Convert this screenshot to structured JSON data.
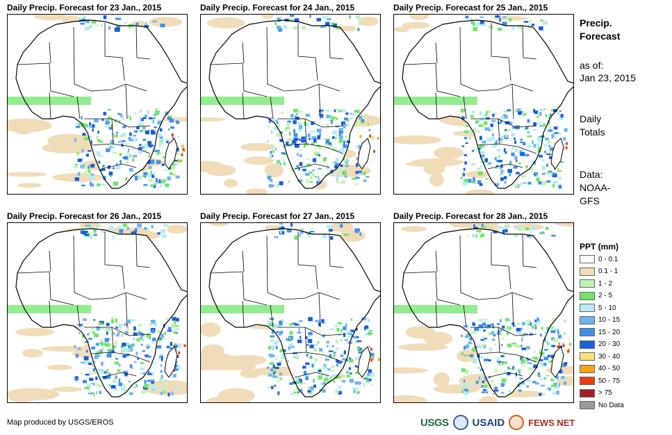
{
  "panels": [
    {
      "title": "Daily Precip. Forecast for 23 Jan., 2015"
    },
    {
      "title": "Daily Precip. Forecast for 24 Jan., 2015"
    },
    {
      "title": "Daily Precip. Forecast for 25 Jan., 2015"
    },
    {
      "title": "Daily Precip. Forecast for 26 Jan., 2015"
    },
    {
      "title": "Daily Precip. Forecast for 27 Jan., 2015"
    },
    {
      "title": "Daily Precip. Forecast for 28 Jan., 2015"
    }
  ],
  "side": {
    "heading_line1": "Precip.",
    "heading_line2": "Forecast",
    "asof_line1": "as of:",
    "asof_line2": "Jan 23, 2015",
    "totals_line1": "Daily",
    "totals_line2": "Totals",
    "data_line1": "Data:",
    "data_line2": "NOAA-",
    "data_line3": "GFS"
  },
  "legend": {
    "title": "PPT (mm)",
    "items": [
      {
        "label": "0 - 0.1",
        "color": "#ffffff"
      },
      {
        "label": "0.1 - 1",
        "color": "#f0dcb9"
      },
      {
        "label": "1 - 2",
        "color": "#bff2b5"
      },
      {
        "label": "2 - 5",
        "color": "#6fe56a"
      },
      {
        "label": "5 - 10",
        "color": "#b4ecf5"
      },
      {
        "label": "10 - 15",
        "color": "#6fb3f0"
      },
      {
        "label": "15 - 20",
        "color": "#3f8fea"
      },
      {
        "label": "20 - 30",
        "color": "#1660dc"
      },
      {
        "label": "30 - 40",
        "color": "#f8e27a"
      },
      {
        "label": "40 - 50",
        "color": "#f5a21d"
      },
      {
        "label": "50 - 75",
        "color": "#f03c0c"
      },
      {
        "label": "> 75",
        "color": "#a02020"
      },
      {
        "label": "No Data",
        "color": "#9a9a9a"
      }
    ]
  },
  "footer": {
    "credit": "Map produced by USGS/EROS",
    "logo1": "USGS",
    "logo2": "USAID",
    "logo3": "FEWS NET"
  }
}
